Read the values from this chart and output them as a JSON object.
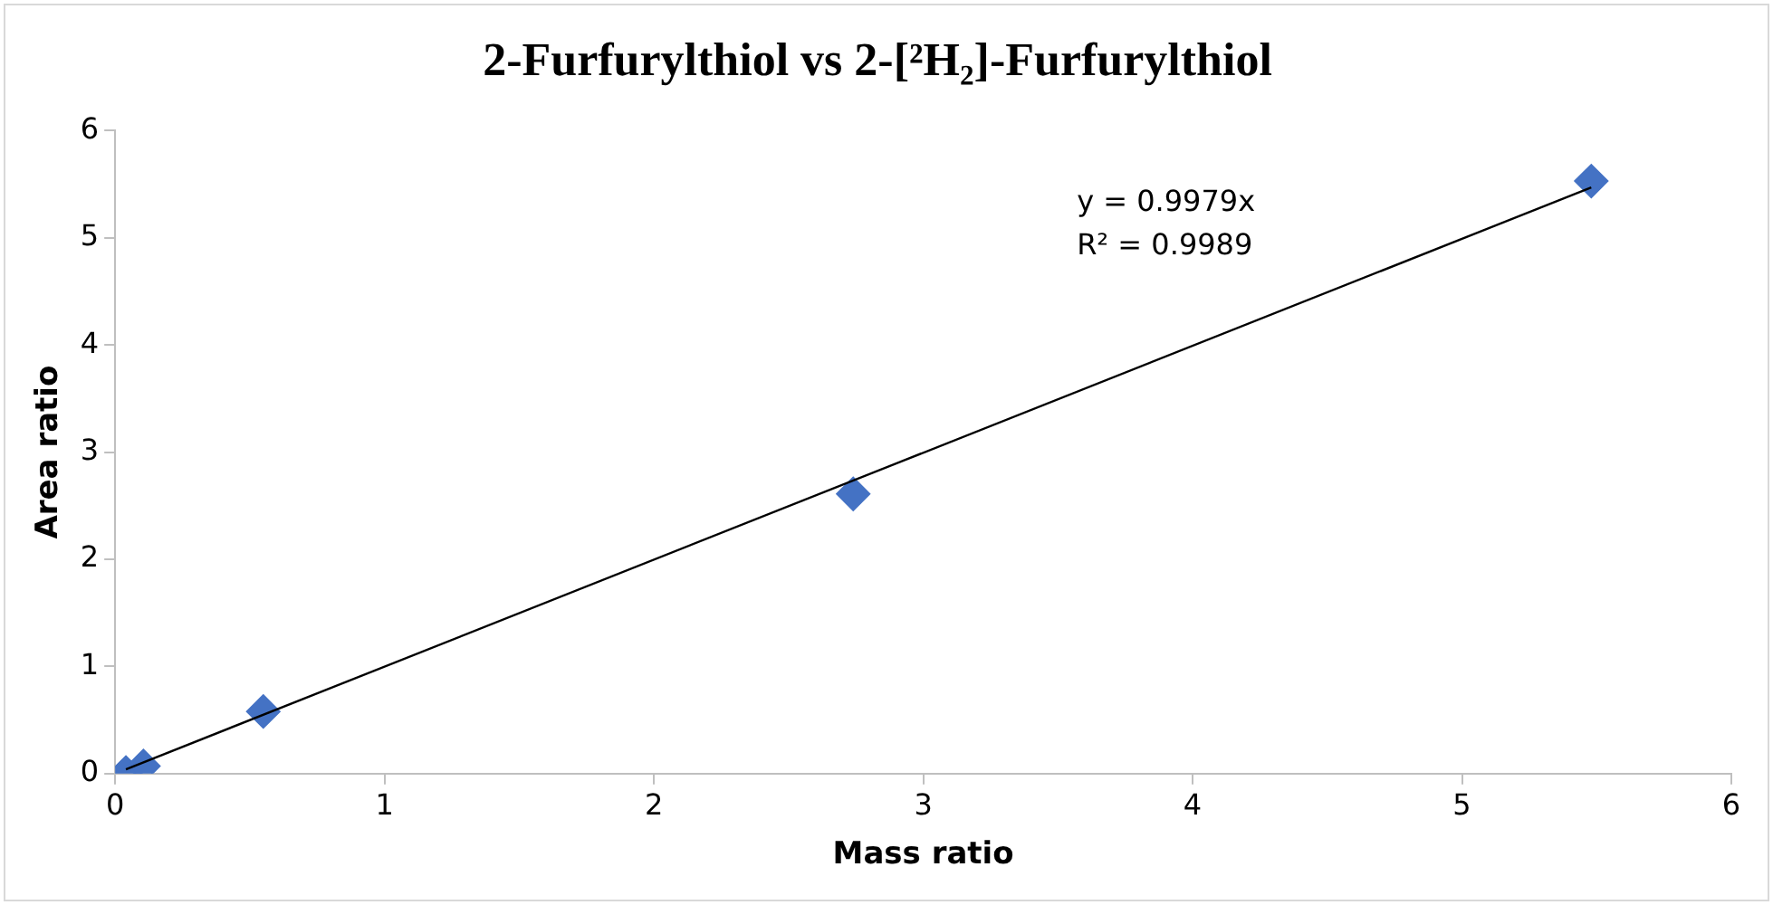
{
  "chart_data": {
    "type": "scatter",
    "title": "2-Furfurylthiol vs 2-[²H₂]-Furfurylthiol",
    "xlabel": "Mass ratio",
    "ylabel": "Area ratio",
    "x": [
      0.04,
      0.105,
      0.55,
      2.74,
      5.48
    ],
    "series": [
      {
        "color": "#4472c4",
        "marker": "diamond",
        "values": [
          0.01,
          0.07,
          0.58,
          2.61,
          5.53
        ]
      },
      {
        "type": "line",
        "color": "#000000",
        "marker": "none",
        "x": [
          0.04,
          5.48
        ],
        "values": [
          0.04,
          5.47
        ]
      }
    ],
    "annotations": [
      "y = 0.9979x",
      "R² = 0.9989"
    ],
    "xlim": [
      0,
      6
    ],
    "xticks": [
      0,
      1,
      2,
      3,
      4,
      5,
      6
    ],
    "ylim": [
      0,
      6
    ],
    "yticks": [
      0,
      1,
      2,
      3,
      4,
      5,
      6
    ],
    "grid": false,
    "legend": false
  }
}
